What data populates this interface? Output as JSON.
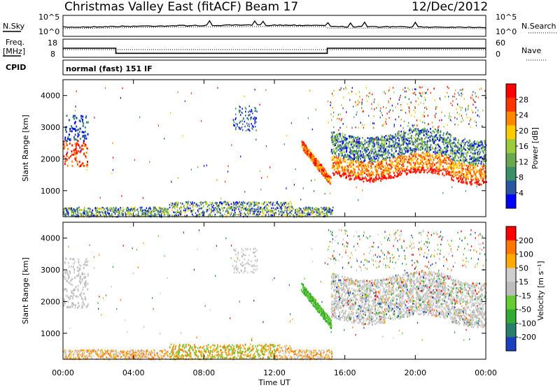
{
  "header": {
    "station": "Christmas Valley East (fitACF)",
    "beam": "Beam 17",
    "date": "12/Dec/2012"
  },
  "status_panel": {
    "nsky_label": "N.Sky",
    "nsky_ticks": [
      "10^5",
      "10^0"
    ],
    "nsearch_label": "N.Search",
    "nsearch_ticks": [
      "10^5",
      "10^0"
    ],
    "freq_label": "Freq.",
    "freq_unit": "[MHz]",
    "freq_ticks": [
      "18",
      "8"
    ],
    "nave_label": "Nave",
    "nave_ticks": [
      "60",
      "0"
    ],
    "cpid_label": "CPID",
    "cpid_value": "normal (fast) 151 IF"
  },
  "colors": {
    "power_scale": [
      "#0000ff",
      "#2a55a0",
      "#3a8f6a",
      "#6aa84f",
      "#9ccc3c",
      "#ffcc00",
      "#ff8800",
      "#ff3300",
      "#ff0000"
    ],
    "velocity_scale": [
      "#1a3fbf",
      "#2a7f6a",
      "#33aa33",
      "#66cc33",
      "#bdbdbd",
      "#cfcfcf",
      "#ffaa00",
      "#ff7700",
      "#ff0000"
    ]
  },
  "chart_data": [
    {
      "type": "line",
      "name": "frequency",
      "x_hours": [
        0,
        3,
        3,
        15,
        15,
        24
      ],
      "y": [
        13,
        13,
        10.2,
        10.2,
        13,
        13
      ],
      "ylim": [
        8,
        18
      ]
    },
    {
      "type": "heatmap",
      "name": "power",
      "ylabel": "Slant Range [km]",
      "colorbar_label": "Power [dB]",
      "colorbar_ticks": [
        "28",
        "24",
        "20",
        "16",
        "12",
        "8",
        "4"
      ],
      "ylim": [
        180,
        4500
      ],
      "yticks": [
        "4000",
        "3000",
        "2000",
        "1000"
      ]
    },
    {
      "type": "heatmap",
      "name": "velocity",
      "ylabel": "Slant Range [km]",
      "colorbar_label": "Velocity [m s⁻¹]",
      "colorbar_ticks": [
        "200",
        "100",
        "50",
        "15",
        "-15",
        "-50",
        "-100",
        "-200"
      ],
      "ylim": [
        180,
        4500
      ],
      "yticks": [
        "4000",
        "3000",
        "2000",
        "1000"
      ],
      "xlabel": "Time UT",
      "xticks": [
        "00:00",
        "04:00",
        "08:00",
        "12:00",
        "16:00",
        "20:00",
        "00:00"
      ],
      "xlim_hours": [
        0,
        24
      ]
    }
  ]
}
